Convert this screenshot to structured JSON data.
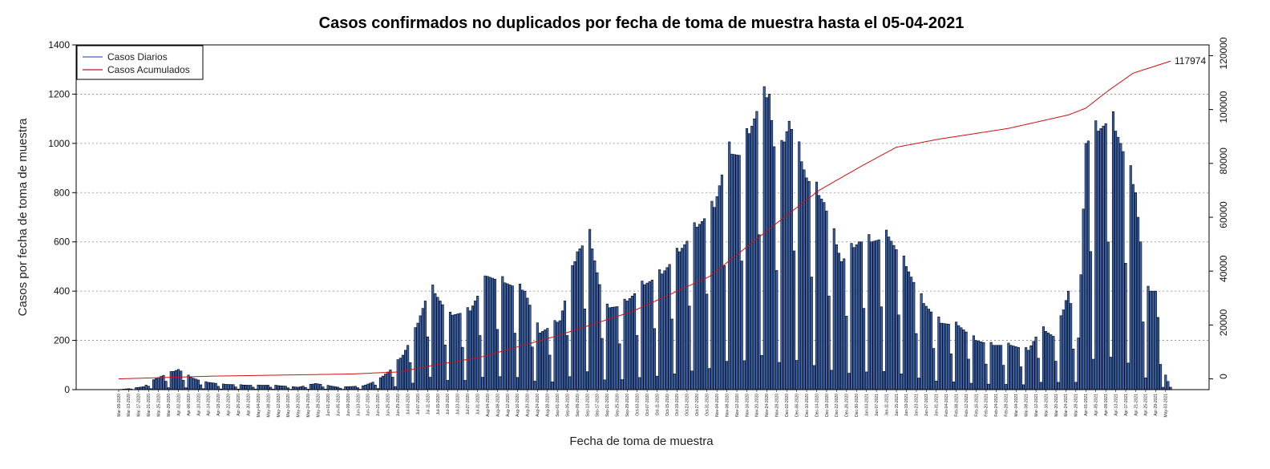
{
  "chart_data": {
    "type": "bar",
    "title": "Casos confirmados no duplicados por fecha de toma de muestra hasta el 05-04-2021",
    "xlabel": "Fecha de toma de muestra",
    "ylabel": "Casos por fecha de toma de muestra",
    "ylim": [
      0,
      1400
    ],
    "y2lim": [
      -4000,
      124000
    ],
    "yticks": [
      0,
      200,
      400,
      600,
      800,
      1000,
      1200,
      1400
    ],
    "y2ticks": [
      0,
      20000,
      40000,
      60000,
      80000,
      100000,
      120000
    ],
    "grid": true,
    "legend_position": "top-left",
    "legend": [
      "Casos Diarios",
      "Casos Acumulados"
    ],
    "series": [
      {
        "name": "Casos Diarios",
        "axis": "left",
        "color": "#3a66b8"
      },
      {
        "name": "Casos Acumulados",
        "axis": "right",
        "color": "#cc1111"
      }
    ],
    "cumulative_final_label": "117974",
    "daily_points": [
      [
        "2020-03-09",
        0
      ],
      [
        "2020-03-14",
        5
      ],
      [
        "2020-03-19",
        12
      ],
      [
        "2020-03-24",
        45
      ],
      [
        "2020-03-27",
        58
      ],
      [
        "2020-04-02",
        82
      ],
      [
        "2020-04-07",
        50
      ],
      [
        "2020-04-12",
        32
      ],
      [
        "2020-04-20",
        22
      ],
      [
        "2020-04-30",
        18
      ],
      [
        "2020-05-10",
        18
      ],
      [
        "2020-05-20",
        10
      ],
      [
        "2020-05-27",
        25
      ],
      [
        "2020-06-05",
        10
      ],
      [
        "2020-06-15",
        15
      ],
      [
        "2020-06-21",
        38
      ],
      [
        "2020-06-26",
        80
      ],
      [
        "2020-07-01",
        140
      ],
      [
        "2020-07-06",
        240
      ],
      [
        "2020-07-12",
        420
      ],
      [
        "2020-07-20",
        300
      ],
      [
        "2020-07-28",
        320
      ],
      [
        "2020-08-04",
        460
      ],
      [
        "2020-08-12",
        430
      ],
      [
        "2020-08-19",
        400
      ],
      [
        "2020-08-25",
        230
      ],
      [
        "2020-09-02",
        280
      ],
      [
        "2020-09-09",
        560
      ],
      [
        "2020-09-14",
        620
      ],
      [
        "2020-09-20",
        330
      ],
      [
        "2020-09-27",
        340
      ],
      [
        "2020-10-05",
        420
      ],
      [
        "2020-10-13",
        470
      ],
      [
        "2020-10-20",
        560
      ],
      [
        "2020-10-27",
        660
      ],
      [
        "2020-11-03",
        740
      ],
      [
        "2020-11-08",
        960
      ],
      [
        "2020-11-14",
        950
      ],
      [
        "2020-11-20",
        1130
      ],
      [
        "2020-11-25",
        1200
      ],
      [
        "2020-11-28",
        880
      ],
      [
        "2020-12-03",
        1090
      ],
      [
        "2020-12-10",
        860
      ],
      [
        "2020-12-17",
        760
      ],
      [
        "2020-12-24",
        520
      ],
      [
        "2020-12-31",
        600
      ],
      [
        "2021-01-05",
        600
      ],
      [
        "2021-01-12",
        620
      ],
      [
        "2021-01-19",
        500
      ],
      [
        "2021-01-26",
        350
      ],
      [
        "2021-02-02",
        270
      ],
      [
        "2021-02-09",
        260
      ],
      [
        "2021-02-16",
        200
      ],
      [
        "2021-02-23",
        180
      ],
      [
        "2021-03-02",
        180
      ],
      [
        "2021-03-09",
        160
      ],
      [
        "2021-03-14",
        250
      ],
      [
        "2021-03-20",
        210
      ],
      [
        "2021-03-25",
        400
      ],
      [
        "2021-03-29",
        200
      ],
      [
        "2021-04-01",
        1000
      ],
      [
        "2021-04-06",
        1050
      ],
      [
        "2021-04-11",
        1100
      ],
      [
        "2021-04-15",
        1000
      ],
      [
        "2021-04-21",
        800
      ],
      [
        "2021-04-25",
        400
      ],
      [
        "2021-04-29",
        400
      ],
      [
        "2021-05-02",
        80
      ],
      [
        "2021-05-05",
        10
      ]
    ],
    "cumulative_points": [
      [
        "2020-03-09",
        0
      ],
      [
        "2020-04-15",
        1000
      ],
      [
        "2020-06-10",
        1800
      ],
      [
        "2020-06-30",
        2600
      ],
      [
        "2020-07-10",
        4500
      ],
      [
        "2020-08-01",
        8000
      ],
      [
        "2020-09-01",
        16000
      ],
      [
        "2020-10-01",
        25000
      ],
      [
        "2020-11-01",
        38000
      ],
      [
        "2020-12-01",
        60000
      ],
      [
        "2020-12-15",
        70000
      ],
      [
        "2021-01-01",
        79000
      ],
      [
        "2021-01-15",
        86000
      ],
      [
        "2021-02-01",
        89000
      ],
      [
        "2021-03-01",
        93000
      ],
      [
        "2021-03-25",
        98000
      ],
      [
        "2021-04-01",
        100500
      ],
      [
        "2021-04-10",
        107000
      ],
      [
        "2021-04-20",
        113500
      ],
      [
        "2021-05-05",
        117974
      ]
    ],
    "x_start": "2020-03-09",
    "x_end": "2021-05-05",
    "xtick_interval_days": 4
  }
}
